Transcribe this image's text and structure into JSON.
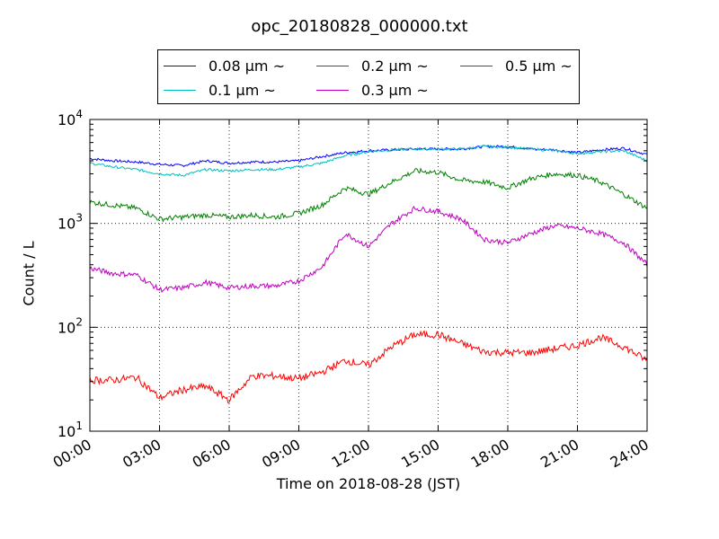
{
  "chart_data": {
    "type": "line",
    "title": "opc_20180828_000000.txt",
    "xlabel": "Time on 2018-08-28 (JST)",
    "ylabel": "Count / L",
    "y_scale": "log",
    "ylim": [
      10,
      10000
    ],
    "xlim": [
      "00:00",
      "24:00"
    ],
    "x_ticks": [
      "00:00",
      "03:00",
      "06:00",
      "09:00",
      "12:00",
      "15:00",
      "18:00",
      "21:00",
      "24:00"
    ],
    "y_ticks": [
      {
        "base": "10",
        "exp": "1"
      },
      {
        "base": "10",
        "exp": "2"
      },
      {
        "base": "10",
        "exp": "3"
      },
      {
        "base": "10",
        "exp": "4"
      }
    ],
    "grid": true,
    "legend_position": "top-center",
    "x": [
      "00:00",
      "01:00",
      "02:00",
      "03:00",
      "04:00",
      "05:00",
      "06:00",
      "07:00",
      "08:00",
      "09:00",
      "10:00",
      "11:00",
      "12:00",
      "13:00",
      "14:00",
      "15:00",
      "16:00",
      "17:00",
      "18:00",
      "19:00",
      "20:00",
      "21:00",
      "22:00",
      "23:00",
      "24:00"
    ],
    "series": [
      {
        "name": "0.08 μm ~",
        "color": "#0000ff",
        "values": [
          4200,
          4000,
          3900,
          3700,
          3600,
          4000,
          3800,
          3900,
          3900,
          4000,
          4400,
          4800,
          5000,
          5100,
          5200,
          5200,
          5200,
          5500,
          5500,
          5200,
          5100,
          4800,
          5100,
          5300,
          4600
        ]
      },
      {
        "name": "0.1 μm ~",
        "color": "#00bfbf",
        "values": [
          3800,
          3500,
          3300,
          3000,
          2900,
          3300,
          3200,
          3300,
          3300,
          3500,
          3800,
          4500,
          4900,
          5100,
          5200,
          5200,
          5200,
          5500,
          5400,
          5200,
          5000,
          4700,
          4900,
          5000,
          4000
        ]
      },
      {
        "name": "0.2 μm ~",
        "color": "#008000",
        "values": [
          1600,
          1500,
          1400,
          1100,
          1150,
          1200,
          1150,
          1200,
          1150,
          1250,
          1500,
          2200,
          1900,
          2500,
          3200,
          3100,
          2600,
          2500,
          2200,
          2700,
          3000,
          2900,
          2500,
          1900,
          1400
        ]
      },
      {
        "name": "0.3 μm ~",
        "color": "#bf00bf",
        "values": [
          370,
          330,
          320,
          230,
          240,
          270,
          240,
          250,
          250,
          280,
          380,
          800,
          600,
          1000,
          1400,
          1300,
          1100,
          700,
          650,
          800,
          950,
          900,
          800,
          650,
          400
        ]
      },
      {
        "name": "0.5 μm ~",
        "color": "#ff0000",
        "values": [
          31,
          31,
          33,
          21,
          25,
          27,
          20,
          34,
          34,
          32,
          37,
          48,
          43,
          65,
          85,
          85,
          70,
          58,
          57,
          57,
          62,
          67,
          80,
          65,
          48
        ]
      }
    ]
  }
}
